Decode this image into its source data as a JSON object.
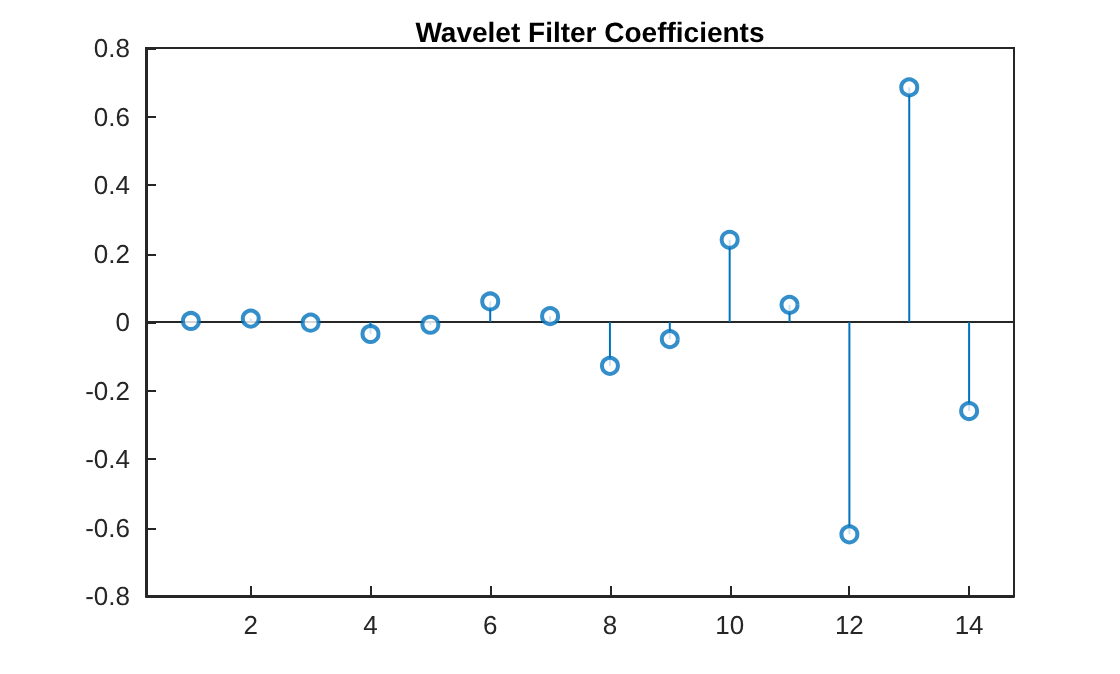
{
  "chart_data": {
    "type": "lollipop",
    "title": "Wavelet Filter Coefficients",
    "x": [
      1,
      2,
      3,
      4,
      5,
      6,
      7,
      8,
      9,
      10,
      11,
      12,
      13,
      14
    ],
    "series": [
      {
        "color": "#0072bd",
        "values": [
          0.003,
          0.01,
          -0.002,
          -0.035,
          -0.008,
          0.06,
          0.017,
          -0.128,
          -0.05,
          0.24,
          0.05,
          -0.62,
          0.685,
          -0.26
        ]
      }
    ],
    "xlim": [
      0.25,
      14.75
    ],
    "xticks": [
      2,
      4,
      6,
      8,
      10,
      12,
      14
    ],
    "ylim": [
      -0.8,
      0.8
    ],
    "yticks": [
      -0.8,
      -0.6,
      -0.4,
      -0.2,
      0,
      0.2,
      0.4,
      0.6,
      0.8
    ],
    "marker": "circle"
  }
}
